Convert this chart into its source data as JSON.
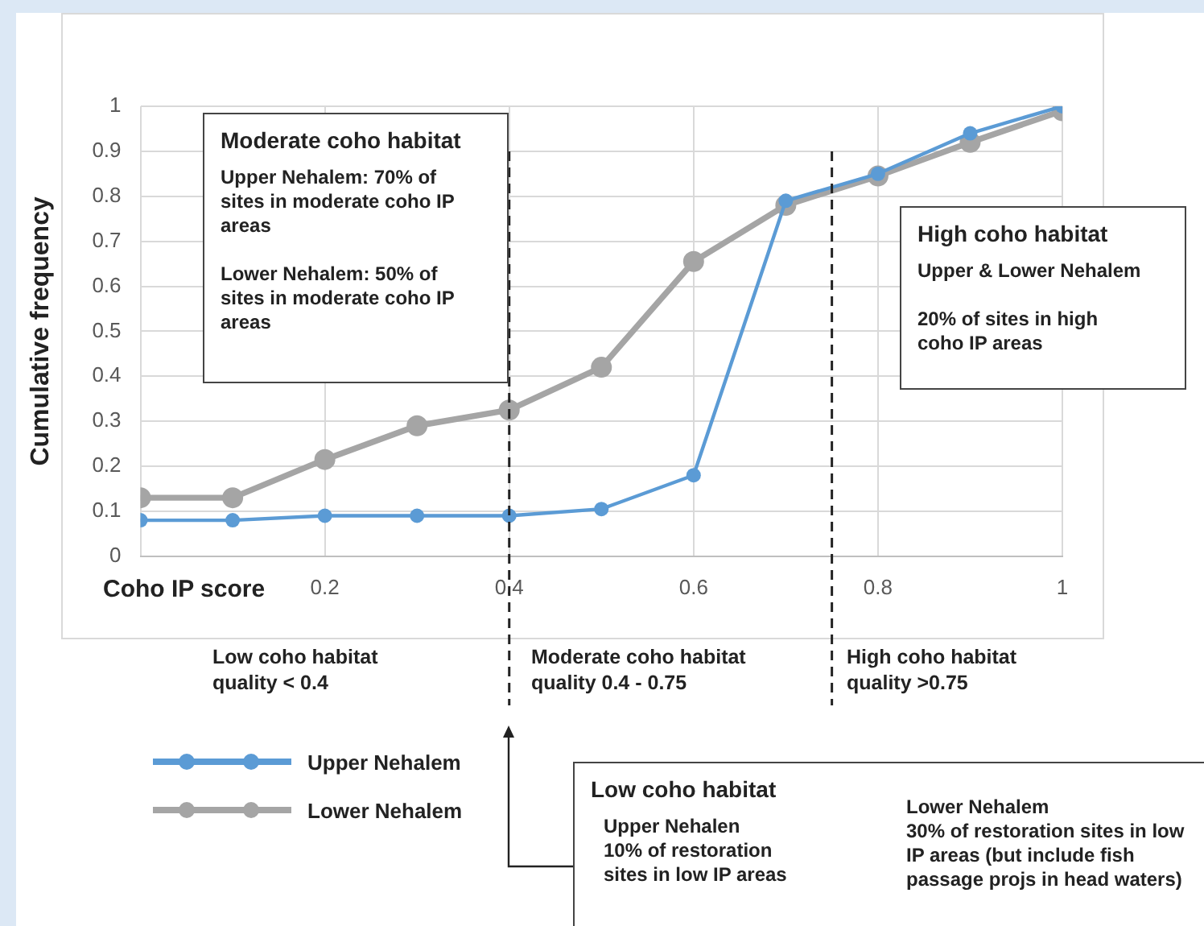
{
  "chart_data": {
    "type": "line",
    "xlabel": "Coho IP score",
    "ylabel": "Cumulative frequency",
    "x": [
      0,
      0.1,
      0.2,
      0.3,
      0.4,
      0.5,
      0.6,
      0.7,
      0.8,
      0.9,
      1
    ],
    "series": [
      {
        "name": "Upper Nehalem",
        "color": "#5b9bd5",
        "values": [
          0.08,
          0.08,
          0.09,
          0.09,
          0.09,
          0.105,
          0.18,
          0.79,
          0.85,
          0.94,
          1.0
        ]
      },
      {
        "name": "Lower Nehalem",
        "color": "#a5a5a5",
        "values": [
          0.13,
          0.13,
          0.215,
          0.29,
          0.325,
          0.42,
          0.655,
          0.78,
          0.845,
          0.92,
          0.99
        ]
      }
    ],
    "xlim": [
      0,
      1
    ],
    "xticks": [
      {
        "value": 0,
        "label": null
      },
      0.2,
      0.4,
      0.6,
      0.8,
      1
    ],
    "ylim": [
      0,
      1
    ],
    "yticks": [
      0,
      0.1,
      0.2,
      0.3,
      0.4,
      0.5,
      0.6,
      0.7,
      0.8,
      0.9,
      1
    ],
    "ref_lines": [
      {
        "axis": "x",
        "value": 0.4,
        "color": "#222222",
        "line_style": "dashed"
      },
      {
        "axis": "x",
        "value": 0.75,
        "color": "#222222",
        "line_style": "dashed"
      }
    ],
    "annotations": [
      "Moderate coho habitat\nUpper Nehalem: 70% of sites in moderate coho IP areas\nLower Nehalem: 50% of sites in moderate coho IP areas",
      "High coho habitat\nUpper & Lower Nehalem\n20% of sites in high coho IP areas",
      "Low coho habitat quality < 0.4",
      "Moderate coho habitat quality 0.4 - 0.75",
      "High coho habitat quality >0.75",
      "Low coho habitat",
      "Upper Nehalen\n10% of restoration sites in low IP areas",
      "Lower Nehalem\n30% of restoration sites in low IP areas (but include fish passage projs in head waters)"
    ],
    "grid": true,
    "legend": "bottom left",
    "marker": "circle",
    "line_style": "solid"
  }
}
